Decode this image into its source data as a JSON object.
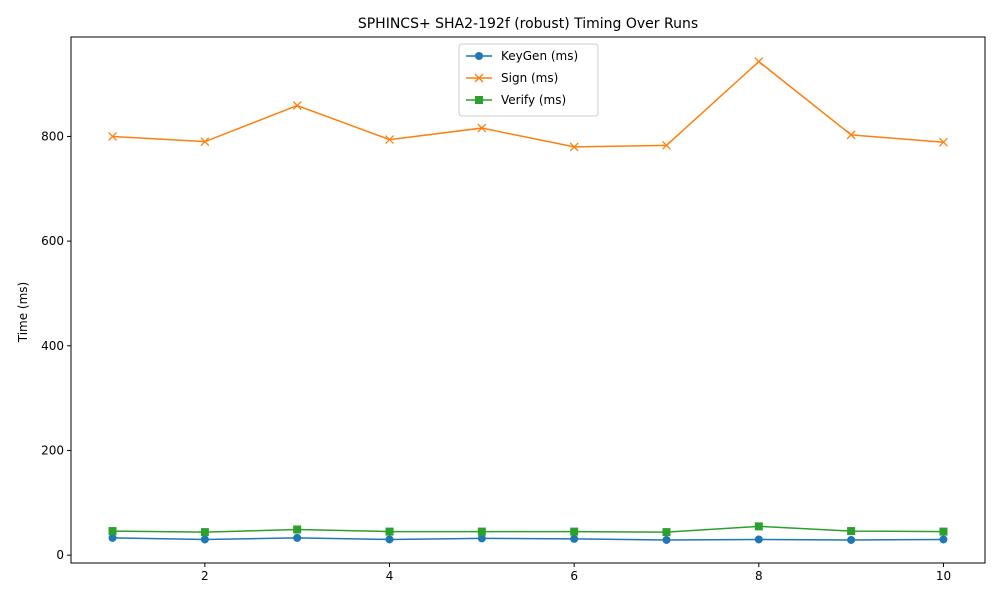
{
  "chart_data": {
    "type": "line",
    "title": "SPHINCS+ SHA2-192f (robust) Timing Over Runs",
    "xlabel": "",
    "ylabel": "Time (ms)",
    "x": [
      1,
      2,
      3,
      4,
      5,
      6,
      7,
      8,
      9,
      10
    ],
    "xlim": [
      0.55,
      10.45
    ],
    "ylim": [
      -15,
      990
    ],
    "xticks": [
      2,
      4,
      6,
      8,
      10
    ],
    "yticks": [
      0,
      200,
      400,
      600,
      800
    ],
    "grid": false,
    "legend_position": "top-center",
    "series": [
      {
        "name": "KeyGen (ms)",
        "color": "#1f77b4",
        "marker": "circle",
        "values": [
          33,
          30,
          33,
          30,
          32,
          31,
          29,
          30,
          29,
          30
        ]
      },
      {
        "name": "Sign (ms)",
        "color": "#ff7f0e",
        "marker": "x",
        "values": [
          800,
          790,
          859,
          794,
          816,
          780,
          783,
          943,
          803,
          789
        ]
      },
      {
        "name": "Verify (ms)",
        "color": "#2ca02c",
        "marker": "square",
        "values": [
          46,
          44,
          49,
          45,
          45,
          45,
          44,
          55,
          46,
          45
        ]
      }
    ]
  }
}
